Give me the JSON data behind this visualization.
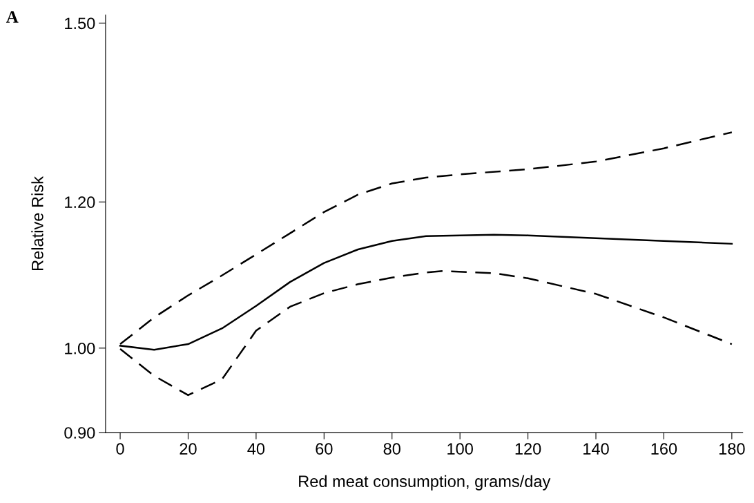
{
  "chart_data": {
    "type": "line",
    "xlabel": "Red meat consumption, grams/day",
    "ylabel": "Relative Risk",
    "annotations": [
      "A"
    ],
    "log": "y",
    "grid": false,
    "marker": "none",
    "xlim": [
      -4.3,
      183.2
    ],
    "xticks": [
      0,
      20,
      40,
      60,
      80,
      100,
      120,
      140,
      160,
      180
    ],
    "ylim": [
      0.9,
      1.515
    ],
    "yticks": [
      {
        "value": 0.9,
        "label": "0.90"
      },
      {
        "value": 1.0,
        "label": "1.00"
      },
      {
        "value": 1.2,
        "label": "1.20"
      },
      {
        "value": 1.5,
        "label": "1.50"
      }
    ],
    "series": [
      {
        "color": "#000000",
        "line_style": "solid",
        "x": [
          0,
          10,
          20,
          30,
          40,
          50,
          60,
          70,
          80,
          90,
          100,
          110,
          120,
          140,
          160,
          180
        ],
        "values": [
          1.003,
          0.998,
          1.005,
          1.025,
          1.054,
          1.086,
          1.112,
          1.131,
          1.143,
          1.15,
          1.151,
          1.152,
          1.151,
          1.147,
          1.143,
          1.139
        ]
      },
      {
        "color": "#000000",
        "line_style": "dashed",
        "x": [
          0,
          10,
          20,
          30,
          40,
          50,
          60,
          70,
          80,
          90,
          100,
          120,
          140,
          160,
          180
        ],
        "values": [
          1.005,
          1.039,
          1.068,
          1.095,
          1.124,
          1.154,
          1.185,
          1.211,
          1.228,
          1.237,
          1.242,
          1.25,
          1.262,
          1.283,
          1.309
        ]
      },
      {
        "color": "#000000",
        "line_style": "dashed",
        "x": [
          0,
          10,
          20,
          30,
          40,
          50,
          60,
          70,
          80,
          90,
          95,
          110,
          120,
          140,
          160,
          180
        ],
        "values": [
          0.999,
          0.966,
          0.943,
          0.962,
          1.022,
          1.053,
          1.071,
          1.083,
          1.092,
          1.099,
          1.101,
          1.098,
          1.091,
          1.07,
          1.039,
          1.005
        ]
      }
    ]
  }
}
